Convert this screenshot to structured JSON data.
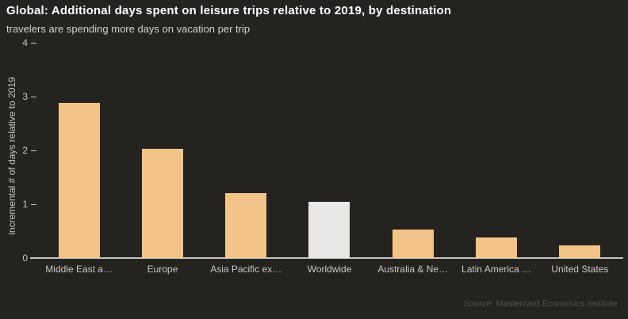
{
  "header": {
    "title": "Global: Additional days spent on leisure trips relative to 2019, by destination",
    "subtitle": "travelers are spending more days on vacation per trip"
  },
  "footer": {
    "source": "Source: Mastercard Economics Institute"
  },
  "chart_data": {
    "type": "bar",
    "title": "Global: Additional days spent on leisure trips relative to 2019, by destination",
    "subtitle": "travelers are spending more days on vacation per trip",
    "categories": [
      "Middle East a…",
      "Europe",
      "Asia Pacific ex…",
      "Worldwide",
      "Australia & Ne…",
      "Latin America …",
      "United States"
    ],
    "values": [
      2.88,
      2.03,
      1.21,
      1.04,
      0.53,
      0.38,
      0.23
    ],
    "xlabel": "",
    "ylabel": "incremental # of days relative to 2019",
    "ylim": [
      0,
      4
    ],
    "yticks": [
      0,
      1,
      2,
      3,
      4
    ],
    "grid": false,
    "legend_position": "none",
    "highlight_index": 3,
    "bar_color_default": "#f2c489",
    "bar_color_highlight": "#e8e8e8"
  },
  "colors": {
    "background": "#252320",
    "title": "#ffffff",
    "subtitle": "#d4d1cc",
    "axis_text": "#c9c6c1",
    "axis_line": "#c6c4c0",
    "source": "#52504a"
  }
}
